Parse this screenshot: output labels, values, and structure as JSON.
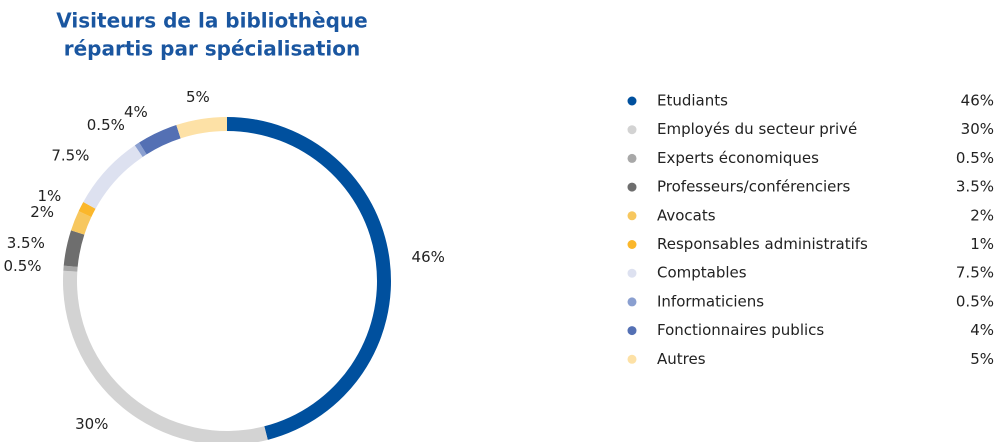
{
  "chart_data": {
    "type": "donut",
    "title": [
      "Visiteurs de la bibliothèque",
      "répartis par spécialisation"
    ],
    "categories": [
      "Etudiants",
      "Employés du secteur privé",
      "Experts économiques",
      "Professeurs/conférenciers",
      "Avocats",
      "Responsables administratifs",
      "Comptables",
      "Informaticiens",
      "Fonctionnaires publics",
      "Autres"
    ],
    "values": [
      46,
      30,
      0.5,
      3.5,
      2,
      1,
      7.5,
      0.5,
      4,
      5
    ],
    "value_labels": [
      "46%",
      "30%",
      "0.5%",
      "3.5%",
      "2%",
      "1%",
      "7.5%",
      "0.5%",
      "4%",
      "5%"
    ],
    "colors": [
      "#00509e",
      "#d3d3d3",
      "#a8a8a8",
      "#6e6e6e",
      "#f7c75e",
      "#fbb72b",
      "#dde1f0",
      "#8a9fd0",
      "#5470b4",
      "#fde1a6"
    ],
    "legend": "right"
  }
}
